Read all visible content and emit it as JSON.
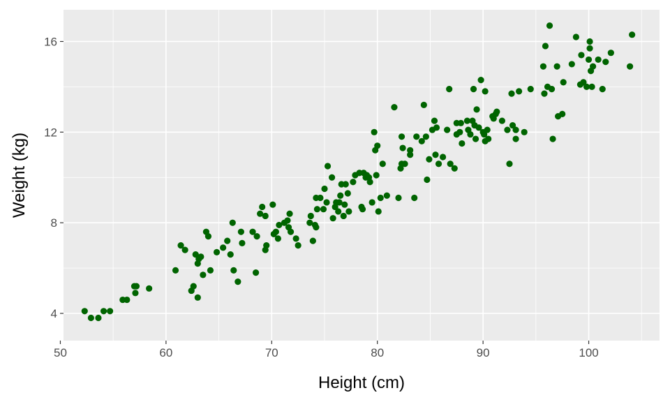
{
  "chart_data": {
    "type": "scatter",
    "title": "",
    "xlabel": "Height (cm)",
    "ylabel": "Weight (kg)",
    "xlim": [
      50.3,
      106.7
    ],
    "ylim": [
      2.8,
      17.4
    ],
    "xticks": [
      50,
      60,
      70,
      80,
      90,
      100
    ],
    "xtick_labels": [
      "50",
      "60",
      "70",
      "80",
      "90",
      "100"
    ],
    "yticks": [
      4,
      8,
      12,
      16
    ],
    "ytick_labels": [
      "4",
      "8",
      "12",
      "16"
    ],
    "grid": true,
    "legend": "none",
    "colors": {
      "point": "#006400",
      "panel": "#ebebeb",
      "grid": "#ffffff",
      "tick": "#333333"
    },
    "points": [
      [
        52.3,
        4.1
      ],
      [
        52.9,
        3.8
      ],
      [
        53.6,
        3.8
      ],
      [
        54.1,
        4.1
      ],
      [
        54.7,
        4.1
      ],
      [
        55.9,
        4.6
      ],
      [
        56.3,
        4.6
      ],
      [
        57.0,
        5.2
      ],
      [
        57.2,
        5.2
      ],
      [
        57.1,
        4.9
      ],
      [
        58.4,
        5.1
      ],
      [
        60.9,
        5.9
      ],
      [
        61.4,
        7.0
      ],
      [
        61.8,
        6.8
      ],
      [
        62.4,
        5.0
      ],
      [
        62.6,
        5.2
      ],
      [
        62.8,
        6.6
      ],
      [
        63.0,
        6.2
      ],
      [
        63.1,
        6.4
      ],
      [
        63.0,
        4.7
      ],
      [
        63.3,
        6.5
      ],
      [
        63.5,
        5.7
      ],
      [
        63.8,
        7.6
      ],
      [
        64.0,
        7.4
      ],
      [
        64.2,
        5.9
      ],
      [
        64.8,
        6.7
      ],
      [
        65.4,
        6.9
      ],
      [
        65.8,
        7.2
      ],
      [
        66.1,
        6.6
      ],
      [
        66.3,
        8.0
      ],
      [
        66.4,
        5.9
      ],
      [
        66.8,
        5.4
      ],
      [
        67.1,
        7.6
      ],
      [
        67.2,
        7.1
      ],
      [
        68.2,
        7.6
      ],
      [
        68.5,
        5.8
      ],
      [
        68.6,
        7.4
      ],
      [
        68.9,
        8.4
      ],
      [
        69.1,
        8.7
      ],
      [
        69.4,
        8.3
      ],
      [
        69.5,
        7.0
      ],
      [
        69.4,
        6.8
      ],
      [
        70.1,
        8.8
      ],
      [
        70.2,
        7.5
      ],
      [
        70.4,
        7.6
      ],
      [
        70.7,
        7.9
      ],
      [
        70.6,
        7.3
      ],
      [
        71.2,
        8.0
      ],
      [
        71.5,
        8.1
      ],
      [
        71.6,
        7.8
      ],
      [
        71.7,
        8.4
      ],
      [
        71.8,
        7.6
      ],
      [
        72.3,
        7.3
      ],
      [
        72.5,
        7.0
      ],
      [
        73.6,
        8.0
      ],
      [
        73.7,
        8.3
      ],
      [
        73.9,
        7.2
      ],
      [
        74.1,
        7.9
      ],
      [
        74.2,
        7.8
      ],
      [
        74.3,
        8.6
      ],
      [
        74.2,
        9.1
      ],
      [
        74.6,
        9.1
      ],
      [
        74.9,
        8.6
      ],
      [
        75.0,
        9.5
      ],
      [
        75.2,
        8.9
      ],
      [
        75.3,
        10.5
      ],
      [
        75.7,
        10.0
      ],
      [
        75.8,
        8.2
      ],
      [
        76.0,
        8.7
      ],
      [
        76.1,
        8.9
      ],
      [
        76.3,
        8.5
      ],
      [
        76.4,
        8.9
      ],
      [
        76.5,
        9.2
      ],
      [
        76.6,
        9.7
      ],
      [
        76.8,
        8.3
      ],
      [
        76.9,
        8.8
      ],
      [
        77.0,
        9.7
      ],
      [
        77.2,
        9.3
      ],
      [
        77.3,
        8.5
      ],
      [
        77.7,
        9.8
      ],
      [
        77.9,
        10.1
      ],
      [
        78.3,
        10.2
      ],
      [
        78.5,
        8.7
      ],
      [
        78.6,
        8.6
      ],
      [
        78.7,
        10.2
      ],
      [
        78.9,
        10.0
      ],
      [
        79.0,
        10.1
      ],
      [
        79.2,
        10.0
      ],
      [
        79.3,
        9.8
      ],
      [
        79.5,
        8.9
      ],
      [
        79.7,
        12.0
      ],
      [
        79.8,
        11.2
      ],
      [
        79.9,
        10.1
      ],
      [
        80.0,
        11.4
      ],
      [
        80.1,
        8.5
      ],
      [
        80.3,
        9.1
      ],
      [
        80.5,
        10.6
      ],
      [
        80.9,
        9.2
      ],
      [
        81.6,
        13.1
      ],
      [
        82.0,
        9.1
      ],
      [
        82.2,
        10.4
      ],
      [
        82.3,
        11.8
      ],
      [
        82.3,
        10.6
      ],
      [
        82.4,
        11.3
      ],
      [
        82.6,
        10.6
      ],
      [
        83.1,
        11.0
      ],
      [
        83.1,
        11.2
      ],
      [
        83.5,
        9.1
      ],
      [
        83.7,
        11.8
      ],
      [
        84.2,
        11.6
      ],
      [
        84.4,
        13.2
      ],
      [
        84.6,
        11.8
      ],
      [
        84.9,
        10.8
      ],
      [
        84.7,
        9.9
      ],
      [
        85.2,
        12.1
      ],
      [
        85.4,
        12.5
      ],
      [
        85.6,
        12.2
      ],
      [
        85.5,
        11.0
      ],
      [
        85.8,
        10.6
      ],
      [
        86.2,
        10.9
      ],
      [
        86.6,
        12.1
      ],
      [
        86.8,
        13.9
      ],
      [
        86.9,
        10.6
      ],
      [
        87.3,
        10.4
      ],
      [
        87.5,
        12.4
      ],
      [
        87.5,
        11.9
      ],
      [
        87.8,
        12.0
      ],
      [
        87.9,
        12.4
      ],
      [
        88.0,
        11.5
      ],
      [
        88.5,
        12.5
      ],
      [
        88.6,
        12.1
      ],
      [
        88.8,
        11.9
      ],
      [
        89.0,
        12.5
      ],
      [
        89.1,
        13.9
      ],
      [
        89.2,
        12.3
      ],
      [
        89.3,
        11.7
      ],
      [
        89.4,
        13.0
      ],
      [
        89.6,
        12.2
      ],
      [
        89.8,
        14.3
      ],
      [
        90.0,
        12.0
      ],
      [
        90.1,
        11.9
      ],
      [
        90.2,
        11.6
      ],
      [
        90.2,
        13.8
      ],
      [
        90.4,
        12.1
      ],
      [
        90.5,
        11.7
      ],
      [
        90.9,
        12.7
      ],
      [
        91.0,
        12.6
      ],
      [
        91.2,
        12.8
      ],
      [
        91.3,
        12.9
      ],
      [
        91.8,
        12.5
      ],
      [
        92.3,
        12.1
      ],
      [
        92.5,
        10.6
      ],
      [
        92.7,
        13.7
      ],
      [
        92.8,
        12.3
      ],
      [
        93.1,
        12.1
      ],
      [
        93.1,
        11.7
      ],
      [
        93.4,
        13.8
      ],
      [
        93.9,
        12.0
      ],
      [
        94.5,
        13.9
      ],
      [
        95.7,
        14.9
      ],
      [
        95.8,
        13.7
      ],
      [
        95.9,
        15.8
      ],
      [
        96.1,
        14.0
      ],
      [
        96.3,
        16.7
      ],
      [
        96.5,
        13.9
      ],
      [
        96.6,
        11.7
      ],
      [
        97.0,
        14.9
      ],
      [
        97.1,
        12.7
      ],
      [
        97.5,
        12.8
      ],
      [
        97.6,
        14.2
      ],
      [
        98.4,
        15.0
      ],
      [
        98.8,
        16.2
      ],
      [
        99.2,
        14.1
      ],
      [
        99.3,
        15.4
      ],
      [
        99.5,
        14.2
      ],
      [
        99.8,
        14.0
      ],
      [
        100.0,
        15.2
      ],
      [
        100.1,
        16.0
      ],
      [
        100.1,
        15.7
      ],
      [
        100.2,
        14.7
      ],
      [
        100.3,
        14.0
      ],
      [
        100.4,
        14.9
      ],
      [
        100.9,
        15.2
      ],
      [
        101.3,
        13.9
      ],
      [
        101.6,
        15.1
      ],
      [
        102.1,
        15.5
      ],
      [
        103.9,
        14.9
      ],
      [
        104.1,
        16.3
      ]
    ]
  }
}
